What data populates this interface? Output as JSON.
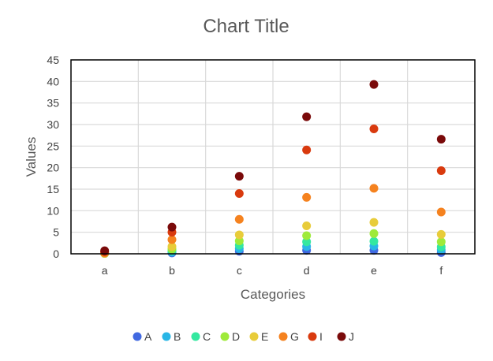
{
  "chart_data": {
    "type": "scatter",
    "title": "Chart Title",
    "xlabel": "Categories",
    "ylabel": "Values",
    "categories": [
      "a",
      "b",
      "c",
      "d",
      "e",
      "f"
    ],
    "ylim": [
      0,
      45
    ],
    "yticks": [
      0,
      5,
      10,
      15,
      20,
      25,
      30,
      35,
      40,
      45
    ],
    "grid": true,
    "legend_position": "bottom",
    "series": [
      {
        "name": "A",
        "color": "#4169e1",
        "values": [
          0.1,
          0.2,
          0.6,
          0.8,
          0.8,
          0.3
        ]
      },
      {
        "name": "B",
        "color": "#29b6e6",
        "values": [
          0.1,
          0.4,
          1.2,
          1.7,
          1.8,
          0.9
        ]
      },
      {
        "name": "C",
        "color": "#34e8a0",
        "values": [
          0.1,
          0.7,
          2.0,
          2.8,
          2.9,
          1.6
        ]
      },
      {
        "name": "D",
        "color": "#9eea3a",
        "values": [
          0.1,
          1.1,
          3.0,
          4.2,
          4.7,
          2.8
        ]
      },
      {
        "name": "E",
        "color": "#e8cc3a",
        "values": [
          0.1,
          1.7,
          4.4,
          6.5,
          7.3,
          4.5
        ]
      },
      {
        "name": "G",
        "color": "#f5821f",
        "values": [
          0.2,
          3.3,
          8.0,
          13.1,
          15.2,
          9.7
        ]
      },
      {
        "name": "I",
        "color": "#d93a0e",
        "values": [
          0.5,
          5.0,
          14.0,
          24.1,
          29.0,
          19.3
        ]
      },
      {
        "name": "J",
        "color": "#7a0a0a",
        "values": [
          0.7,
          6.2,
          18.0,
          31.8,
          39.3,
          26.6
        ]
      }
    ]
  }
}
